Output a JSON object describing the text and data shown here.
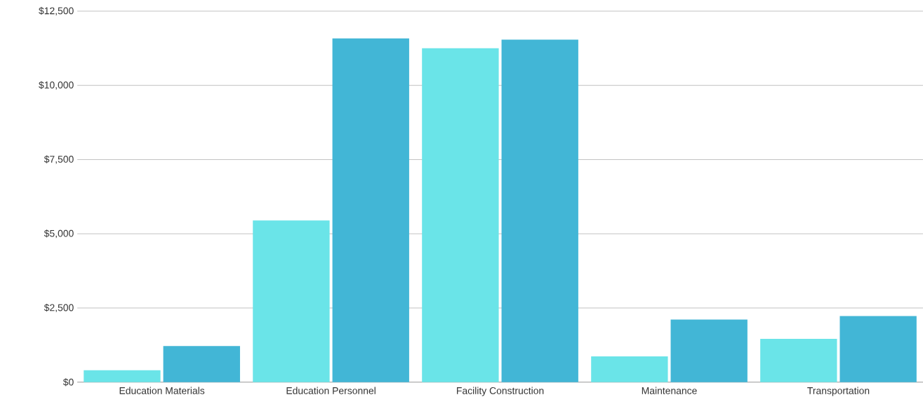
{
  "chart_data": {
    "type": "bar",
    "categories": [
      "Education Materials",
      "Education Personnel",
      "Facility Construction",
      "Maintenance",
      "Transportation"
    ],
    "series": [
      {
        "color": "#6ae4e8",
        "values": [
          400,
          5450,
          11250,
          870,
          1460
        ]
      },
      {
        "color": "#42b6d6",
        "values": [
          1220,
          11580,
          11540,
          2110,
          2230
        ]
      }
    ],
    "ylim": [
      0,
      12500
    ],
    "yticks": [
      {
        "value": 0,
        "label": "$0"
      },
      {
        "value": 2500,
        "label": "$2,500"
      },
      {
        "value": 5000,
        "label": "$5,000"
      },
      {
        "value": 7500,
        "label": "$7,500"
      },
      {
        "value": 10000,
        "label": "$10,000"
      },
      {
        "value": 12500,
        "label": "$12,500"
      }
    ],
    "grid": "y"
  }
}
